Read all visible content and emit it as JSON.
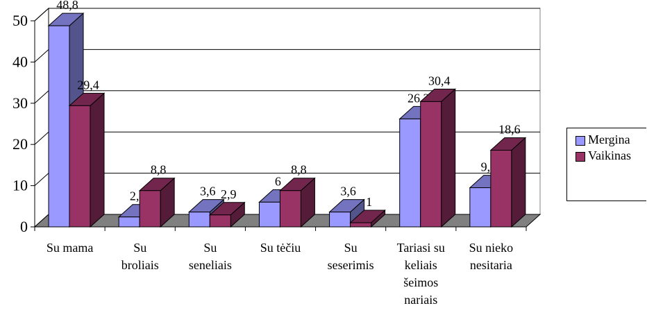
{
  "chart_data": {
    "type": "bar3d",
    "categories": [
      [
        "Su mama"
      ],
      [
        "Su",
        "broliais"
      ],
      [
        "Su",
        "seneliais"
      ],
      [
        "Su tėčiu"
      ],
      [
        "Su",
        "seserimis"
      ],
      [
        "Tariasi su",
        "keliais",
        "šeimos",
        "nariais"
      ],
      [
        "Su nieko",
        "nesitaria"
      ]
    ],
    "series": [
      {
        "name": "Mergina",
        "color": "#9999ff",
        "values": [
          48.8,
          2.4,
          3.6,
          6,
          3.6,
          26.2,
          9.5
        ],
        "value_labels": [
          "48,8",
          "2,4",
          "3,6",
          "6",
          "3,6",
          "26,2",
          "9,5"
        ]
      },
      {
        "name": "Vaikinas",
        "color": "#993366",
        "values": [
          29.4,
          8.8,
          2.9,
          8.8,
          1,
          30.4,
          18.6
        ],
        "value_labels": [
          "29,4",
          "8,8",
          "2,9",
          "8,8",
          "1",
          "30,4",
          "18,6"
        ]
      }
    ],
    "ylim": [
      0,
      50
    ],
    "yticks": [
      0,
      10,
      20,
      30,
      40,
      50
    ],
    "grid": true,
    "legend": "right"
  }
}
